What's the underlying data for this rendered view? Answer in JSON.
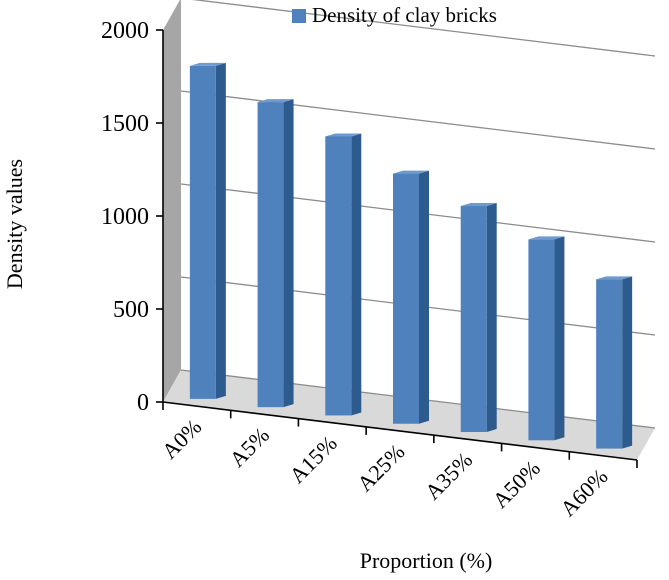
{
  "chart_data": {
    "type": "bar",
    "title": "",
    "xlabel": "Proportion (%)",
    "ylabel": "Density values",
    "categories": [
      "A0%",
      "A5%",
      "A15%",
      "A25%",
      "A35%",
      "A50%",
      "A60%"
    ],
    "series": [
      {
        "name": "Density of clay bricks",
        "values": [
          1790,
          1640,
          1500,
          1345,
          1215,
          1080,
          910
        ]
      }
    ],
    "ylim": [
      0,
      2000
    ],
    "yticks": [
      "0",
      "500",
      "1000",
      "1500",
      "2000"
    ],
    "grid": true,
    "legend": "top-right",
    "style": "3d-column",
    "colors": {
      "bar_front": "#4F81BD",
      "bar_side": "#2E5B8E",
      "bar_top": "#6E9AD0",
      "side_wall": "#A6A6A6",
      "floor": "#D9D9D9"
    }
  }
}
